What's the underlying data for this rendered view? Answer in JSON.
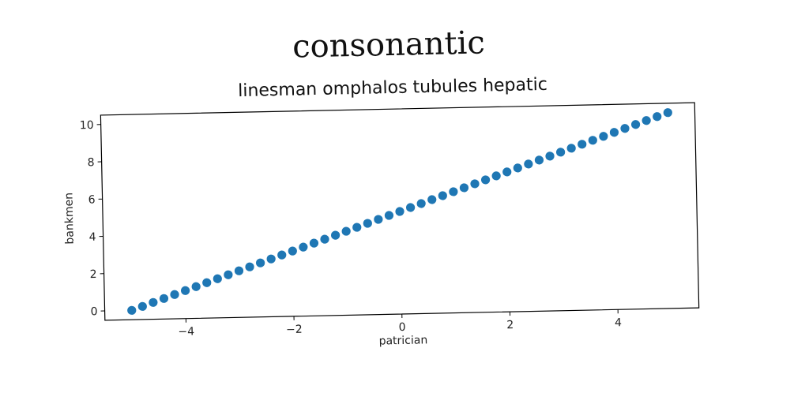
{
  "chart_data": {
    "type": "scatter",
    "title": "consonantic",
    "subtitle": "linesman omphalos tubules hepatic",
    "xlabel": "patrician",
    "ylabel": "bankmen",
    "xlim": [
      -5.5,
      5.5
    ],
    "ylim": [
      -0.5,
      10.5
    ],
    "x_ticks": [
      -4,
      -2,
      0,
      2,
      4
    ],
    "x_tick_labels": [
      "−4",
      "−2",
      "0",
      "2",
      "4"
    ],
    "y_ticks": [
      0,
      2,
      4,
      6,
      8,
      10
    ],
    "y_tick_labels": [
      "0",
      "2",
      "4",
      "6",
      "8",
      "10"
    ],
    "grid": false,
    "point_color": "#1f77b4",
    "series": [
      {
        "x": [
          -5.0,
          -4.8,
          -4.6,
          -4.4,
          -4.2,
          -4.0,
          -3.8,
          -3.6,
          -3.4,
          -3.2,
          -3.0,
          -2.8,
          -2.6,
          -2.4,
          -2.2,
          -2.0,
          -1.8,
          -1.6,
          -1.4,
          -1.2,
          -1.0,
          -0.8,
          -0.6,
          -0.4,
          -0.2,
          0.0,
          0.2,
          0.4,
          0.6,
          0.8,
          1.0,
          1.2,
          1.4,
          1.6,
          1.8,
          2.0,
          2.2,
          2.4,
          2.6,
          2.8,
          3.0,
          3.2,
          3.4,
          3.6,
          3.8,
          4.0,
          4.2,
          4.4,
          4.6,
          4.8,
          5.0
        ],
        "y": [
          0.0,
          0.2,
          0.4,
          0.6,
          0.8,
          1.0,
          1.2,
          1.4,
          1.6,
          1.8,
          2.0,
          2.2,
          2.4,
          2.6,
          2.8,
          3.0,
          3.2,
          3.4,
          3.6,
          3.8,
          4.0,
          4.2,
          4.4,
          4.6,
          4.8,
          5.0,
          5.2,
          5.4,
          5.6,
          5.8,
          6.0,
          6.2,
          6.4,
          6.6,
          6.8,
          7.0,
          7.2,
          7.4,
          7.6,
          7.8,
          8.0,
          8.2,
          8.4,
          8.6,
          8.8,
          9.0,
          9.2,
          9.4,
          9.6,
          9.8,
          10.0
        ]
      }
    ]
  }
}
